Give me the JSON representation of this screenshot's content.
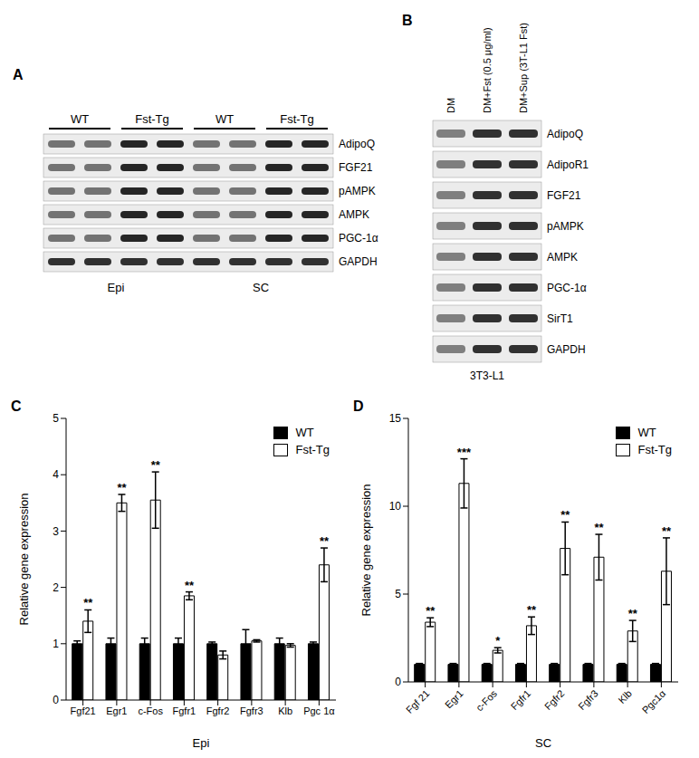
{
  "blots": [
    {
      "panel": "A",
      "groups": [
        {
          "tissue": "Epi",
          "labels": [
            "WT",
            "Fst-Tg"
          ]
        },
        {
          "tissue": "SC",
          "labels": [
            "WT",
            "Fst-Tg"
          ]
        }
      ],
      "rows": [
        "AdipoQ",
        "FGF21",
        "pAMPK",
        "AMPK",
        "PGC-1α",
        "GAPDH"
      ]
    },
    {
      "panel": "B",
      "lanes": [
        "DM",
        "DM+Fst (0.5 μg/ml)",
        "DM+Sup (3T-L1 Fst)"
      ],
      "rows": [
        "AdipoQ",
        "AdipoR1",
        "FGF21",
        "pAMPK",
        "AMPK",
        "PGC-1α",
        "SirT1",
        "GAPDH"
      ],
      "cell_line": "3T3-L1"
    }
  ],
  "chart_data": [
    {
      "panel": "C",
      "type": "bar",
      "x_label": "Epi",
      "y_label": "Relative gene expression",
      "categories": [
        "Fgf21",
        "Egr1",
        "c-Fos",
        "Fgfr1",
        "Fgfr2",
        "Fgfr3",
        "Klb",
        "Pgc 1α"
      ],
      "series": [
        {
          "name": "WT",
          "color": "#000000",
          "values": [
            1.0,
            1.0,
            1.0,
            1.0,
            1.0,
            1.0,
            1.0,
            1.0
          ],
          "errors": [
            0.05,
            0.1,
            0.1,
            0.1,
            0.03,
            0.25,
            0.1,
            0.03
          ]
        },
        {
          "name": "Fst-Tg",
          "color": "#ffffff",
          "values": [
            1.4,
            3.5,
            3.55,
            1.85,
            0.8,
            1.05,
            0.97,
            2.4
          ],
          "errors": [
            0.2,
            0.15,
            0.5,
            0.07,
            0.07,
            0.02,
            0.03,
            0.3
          ],
          "annotations": [
            "**",
            "**",
            "**",
            "**",
            null,
            null,
            null,
            "**"
          ]
        }
      ],
      "ylim": [
        0,
        5
      ],
      "yticks": [
        0,
        1,
        2,
        3,
        4,
        5
      ],
      "legend": "upper right"
    },
    {
      "panel": "D",
      "type": "bar",
      "x_label": "SC",
      "y_label": "Relative gene expression",
      "categories": [
        "Fgf 21",
        "Egr1",
        "c-Fos",
        "Fgfr1",
        "Fgfr2",
        "Fgfr3",
        "Klb",
        "Pgc1α"
      ],
      "series": [
        {
          "name": "WT",
          "color": "#000000",
          "values": [
            1.0,
            1.0,
            1.0,
            1.0,
            1.0,
            1.0,
            1.0,
            1.0
          ],
          "errors": [
            0.05,
            0.05,
            0.05,
            0.05,
            0.05,
            0.05,
            0.05,
            0.05
          ]
        },
        {
          "name": "Fst-Tg",
          "color": "#ffffff",
          "values": [
            3.4,
            11.3,
            1.8,
            3.2,
            7.6,
            7.1,
            2.9,
            6.3
          ],
          "errors": [
            0.25,
            1.4,
            0.15,
            0.5,
            1.5,
            1.3,
            0.6,
            1.9
          ],
          "annotations": [
            "**",
            "***",
            "*",
            "**",
            "**",
            "**",
            "**",
            "**"
          ]
        }
      ],
      "ylim": [
        0,
        15
      ],
      "yticks": [
        0,
        5,
        10,
        15
      ],
      "legend": "upper right"
    }
  ]
}
